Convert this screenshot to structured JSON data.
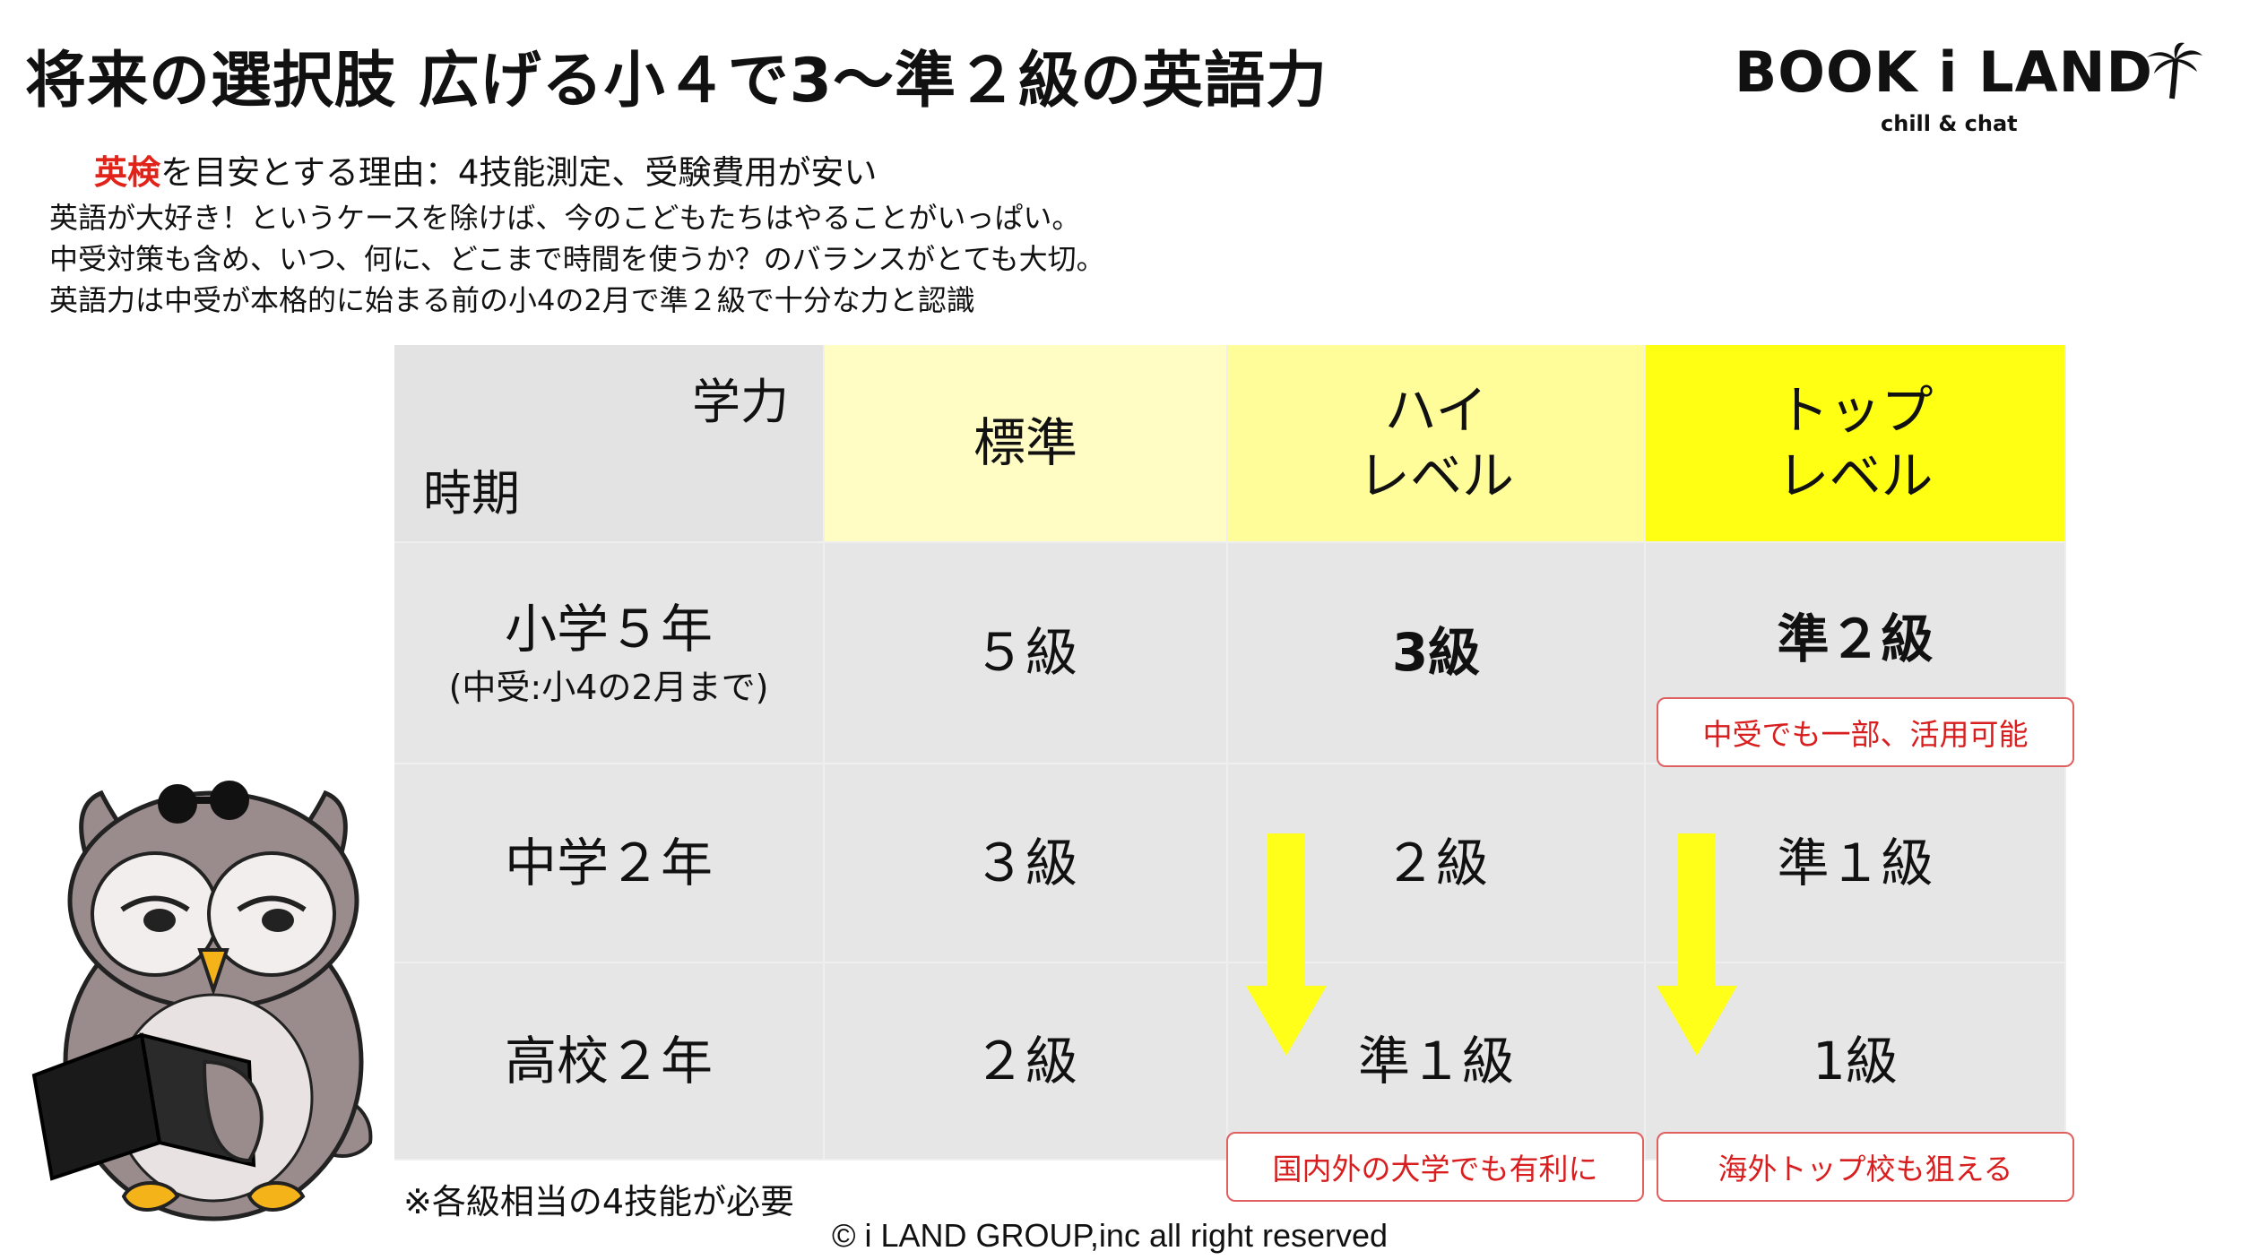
{
  "title": "将来の選択肢 広げる小４で3～準２級の英語力",
  "logo": {
    "brand": "BOOK i LAND",
    "tagline": "chill & chat"
  },
  "reason": {
    "highlight": "英検",
    "rest": "を目安とする理由：4技能測定、受験費用が安い"
  },
  "notes": [
    "英語が大好き！というケースを除けば、今のこどもたちはやることがいっぱい。",
    "中受対策も含め、いつ、何に、どこまで時間を使うか？のバランスがとても大切。",
    "英語力は中受が本格的に始まる前の小4の2月で準２級で十分な力と認識"
  ],
  "table": {
    "corner_top": "学力",
    "corner_bottom": "時期",
    "headers": {
      "standard": "標準",
      "high": [
        "ハイ",
        "レベル"
      ],
      "top": [
        "トップ",
        "レベル"
      ]
    },
    "rows": [
      {
        "period": "小学５年",
        "period_sub": "(中受:小4の2月まで)",
        "standard": "５級",
        "high": "3級",
        "top": "準２級"
      },
      {
        "period": "中学２年",
        "standard": "３級",
        "high": "２級",
        "top": "準１級"
      },
      {
        "period": "高校２年",
        "standard": "２級",
        "high": "準１級",
        "top": "1級"
      }
    ]
  },
  "tags": {
    "top_row1": "中受でも一部、活用可能",
    "high_bottom": "国内外の大学でも有利に",
    "top_bottom": "海外トップ校も狙える"
  },
  "footnote": "※各級相当の4技能が必要",
  "copyright": "© i LAND GROUP,inc all right reserved",
  "colors": {
    "header_standard": "#fffcc4",
    "header_high": "#fffc9a",
    "header_top": "#ffff14",
    "cell_bg": "#e6e6e6",
    "highlight_red": "#e2231a",
    "arrow": "#ffff1a"
  },
  "icons": [
    "palm-tree-icon",
    "owl-mascot",
    "down-arrow-icon"
  ]
}
